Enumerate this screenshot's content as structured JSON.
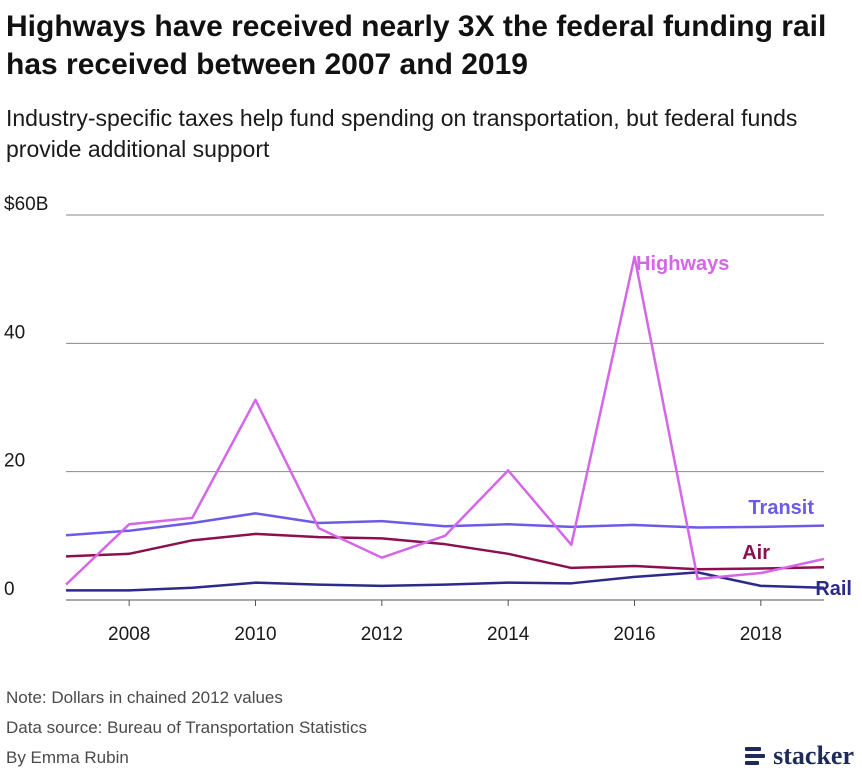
{
  "header": {
    "title": "Highways have received nearly 3X the federal funding rail has received between 2007 and 2019",
    "subtitle": "Industry-specific taxes help fund spending on transportation, but federal funds provide additional support"
  },
  "footer": {
    "note": "Note: Dollars in chained 2012 values",
    "source": "Data source: Bureau of Transportation Statistics",
    "byline": "By Emma Rubin",
    "brand": "stacker"
  },
  "chart_data": {
    "type": "line",
    "title": "",
    "xlabel": "",
    "ylabel": "",
    "x": [
      2007,
      2008,
      2009,
      2010,
      2011,
      2012,
      2013,
      2014,
      2015,
      2016,
      2017,
      2018,
      2019
    ],
    "xticks": [
      2008,
      2010,
      2012,
      2014,
      2016,
      2018
    ],
    "ylim": [
      0,
      60
    ],
    "yticks": [
      0,
      20,
      40,
      60
    ],
    "ytick_labels": [
      "0",
      "20",
      "40",
      "$60B"
    ],
    "grid": "horizontal",
    "legend": "direct labels at line ends",
    "series": [
      {
        "name": "Highways",
        "color": "#d466e8",
        "values": [
          2.4,
          11.8,
          12.8,
          31.2,
          11.2,
          6.6,
          10.0,
          20.2,
          8.6,
          53.5,
          3.3,
          4.2,
          6.4
        ]
      },
      {
        "name": "Transit",
        "color": "#6b5be6",
        "values": [
          10.1,
          10.8,
          12.0,
          13.5,
          12.0,
          12.3,
          11.5,
          11.8,
          11.4,
          11.7,
          11.3,
          11.4,
          11.6
        ]
      },
      {
        "name": "Air",
        "color": "#8b1050",
        "values": [
          6.8,
          7.2,
          9.3,
          10.3,
          9.8,
          9.6,
          8.7,
          7.2,
          5.0,
          5.3,
          4.8,
          4.9,
          5.1
        ]
      },
      {
        "name": "Rail",
        "color": "#2c2a8a",
        "values": [
          1.5,
          1.5,
          1.9,
          2.7,
          2.4,
          2.2,
          2.4,
          2.7,
          2.6,
          3.6,
          4.3,
          2.2,
          1.9
        ]
      }
    ]
  }
}
